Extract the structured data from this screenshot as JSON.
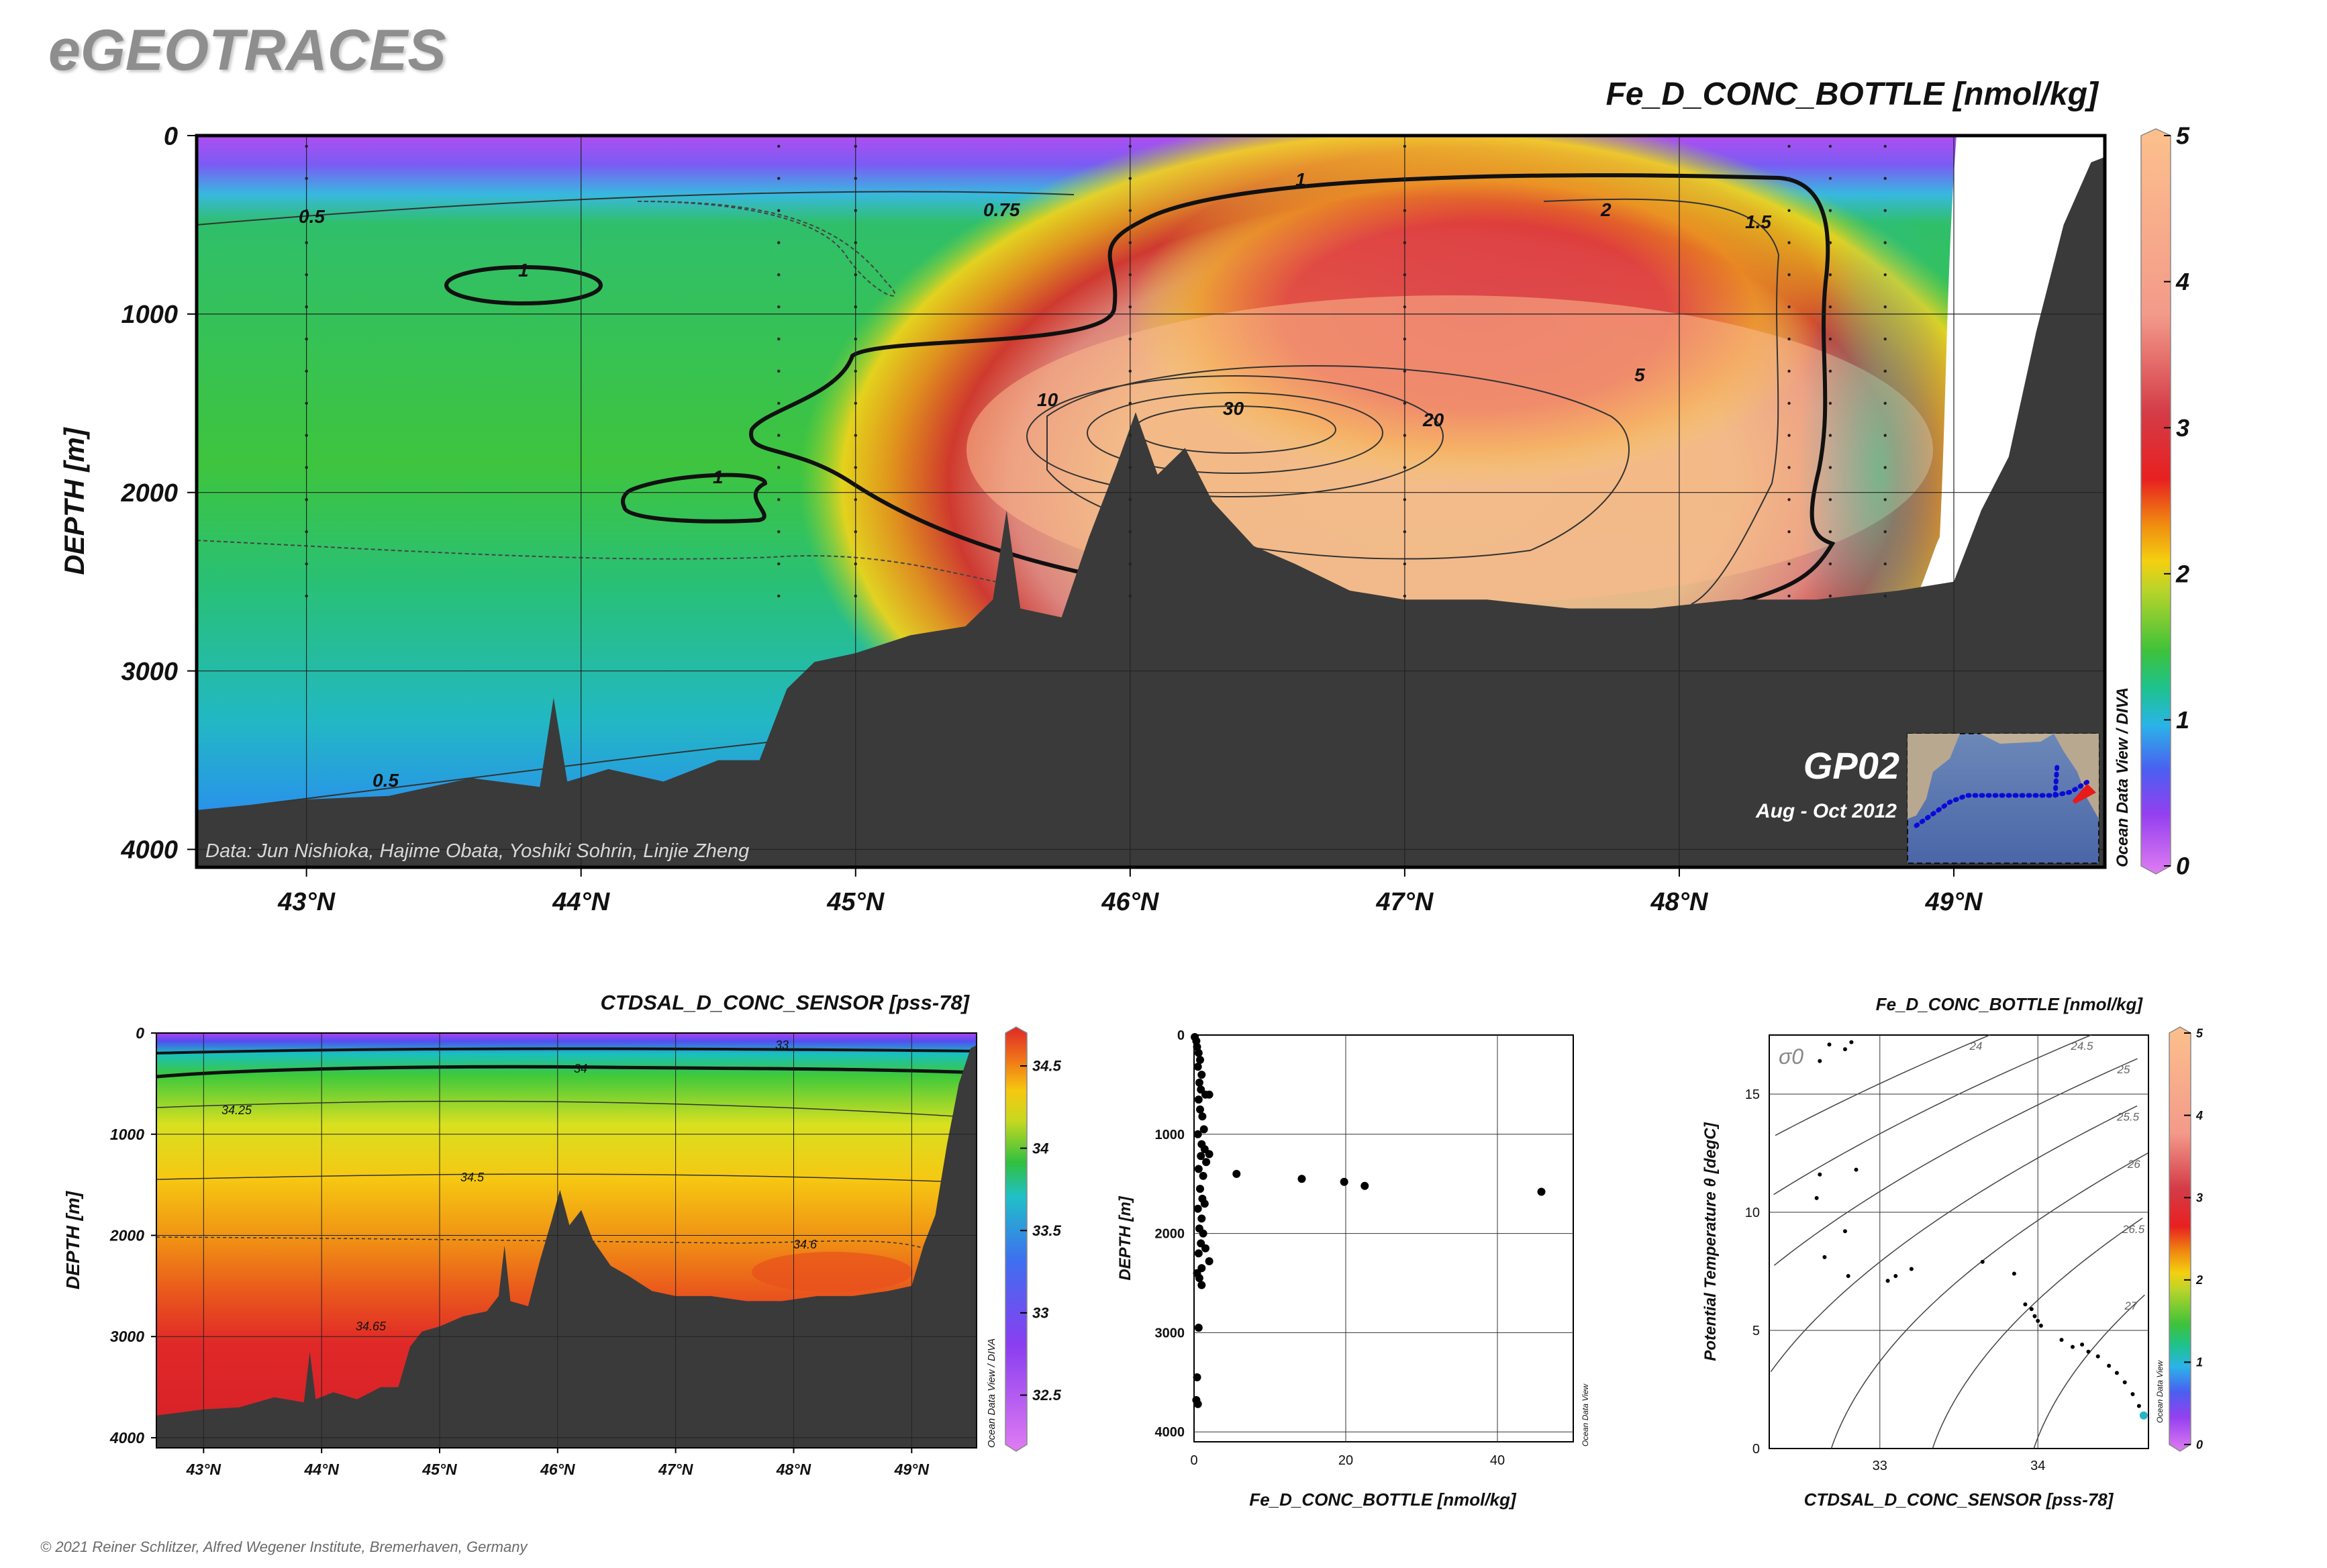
{
  "brand": "eGEOTRACES",
  "copyright": "© 2021 Reiner Schlitzer, Alfred Wegener Institute, Bremerhaven, Germany",
  "main": {
    "title": "Fe_D_CONC_BOTTLE [nmol/kg]",
    "ylabel": "DEPTH [m]",
    "data_credit": "Data: Jun Nishioka, Hajime Obata, Yoshiki Sohrin, Linjie Zheng",
    "cruise": "GP02",
    "cruise_dates": "Aug - Oct 2012",
    "odv_credit": "Ocean Data View / DIVA",
    "contour_labels": [
      "0.5",
      "0.75",
      "1",
      "1",
      "1",
      "1.5",
      "2",
      "5",
      "10",
      "20",
      "30",
      "0.5"
    ],
    "colorbar_ticks": [
      "0",
      "1",
      "2",
      "3",
      "4",
      "5"
    ]
  },
  "salinity": {
    "title": "CTDSAL_D_CONC_SENSOR [pss-78]",
    "ylabel": "DEPTH [m]",
    "odv_credit": "Ocean Data View / DIVA",
    "contour_labels": [
      "33",
      "34",
      "34.25",
      "34.5",
      "34.6",
      "34.65"
    ],
    "colorbar_ticks": [
      "32.5",
      "33",
      "33.5",
      "34",
      "34.5"
    ]
  },
  "profile": {
    "odv_credit": "Ocean Data View"
  },
  "ts": {
    "title": "Fe_D_CONC_BOTTLE [nmol/kg]",
    "sigma_label": "σ0",
    "odv_credit": "Ocean Data View",
    "isopycnal_labels": [
      "24",
      "24.5",
      "25",
      "25.5",
      "26",
      "26.5",
      "27"
    ],
    "colorbar_ticks": [
      "0",
      "1",
      "2",
      "3",
      "4",
      "5"
    ]
  },
  "chart_data": [
    {
      "type": "heatmap",
      "name": "main-section",
      "title": "Fe_D_CONC_BOTTLE [nmol/kg]",
      "xlabel": "",
      "ylabel": "DEPTH [m]",
      "xlim": [
        42.6,
        49.55
      ],
      "ylim": [
        4100,
        0
      ],
      "xticks": [
        43,
        44,
        45,
        46,
        47,
        48,
        49
      ],
      "xticklabels": [
        "43°N",
        "44°N",
        "45°N",
        "46°N",
        "47°N",
        "48°N",
        "49°N"
      ],
      "yticks": [
        0,
        1000,
        2000,
        3000,
        4000
      ],
      "yticklabels": [
        "0",
        "1000",
        "2000",
        "3000",
        "4000"
      ],
      "colorbar": {
        "min": 0,
        "max": 5,
        "ticks": [
          0,
          1,
          2,
          3,
          4,
          5
        ]
      },
      "contour_levels": [
        0.5,
        0.75,
        1,
        1.5,
        2,
        5,
        10,
        20,
        30
      ],
      "bathymetry": {
        "lat": [
          42.6,
          43.0,
          43.3,
          43.6,
          43.85,
          43.9,
          43.95,
          44.1,
          44.3,
          44.5,
          44.65,
          44.75,
          44.85,
          45.0,
          45.2,
          45.4,
          45.5,
          45.55,
          45.6,
          45.75,
          45.85,
          45.95,
          46.02,
          46.1,
          46.2,
          46.3,
          46.45,
          46.6,
          46.8,
          47.0,
          47.3,
          47.6,
          47.9,
          48.2,
          48.5,
          48.8,
          49.0,
          49.1,
          49.2,
          49.3,
          49.4,
          49.5,
          49.55
        ],
        "depth": [
          3780,
          3720,
          3700,
          3600,
          3650,
          3150,
          3620,
          3550,
          3620,
          3500,
          3500,
          3100,
          2950,
          2900,
          2800,
          2750,
          2600,
          2100,
          2650,
          2700,
          2250,
          1850,
          1550,
          1900,
          1750,
          2050,
          2300,
          2400,
          2550,
          2600,
          2600,
          2650,
          2650,
          2600,
          2600,
          2550,
          2500,
          2100,
          1800,
          1100,
          500,
          150,
          120
        ]
      }
    },
    {
      "type": "heatmap",
      "name": "salinity-section",
      "title": "CTDSAL_D_CONC_SENSOR [pss-78]",
      "xlabel": "",
      "ylabel": "DEPTH [m]",
      "xlim": [
        42.6,
        49.55
      ],
      "ylim": [
        4100,
        0
      ],
      "xticks": [
        43,
        44,
        45,
        46,
        47,
        48,
        49
      ],
      "xticklabels": [
        "43°N",
        "44°N",
        "45°N",
        "46°N",
        "47°N",
        "48°N",
        "49°N"
      ],
      "yticks": [
        0,
        1000,
        2000,
        3000,
        4000
      ],
      "yticklabels": [
        "0",
        "1000",
        "2000",
        "3000",
        "4000"
      ],
      "colorbar": {
        "min": 32.2,
        "max": 34.7,
        "ticks": [
          32.5,
          33,
          33.5,
          34,
          34.5
        ]
      },
      "contour_levels": [
        33,
        34,
        34.25,
        34.5,
        34.6,
        34.65
      ]
    },
    {
      "type": "scatter",
      "name": "fe-profile",
      "xlabel": "Fe_D_CONC_BOTTLE [nmol/kg]",
      "ylabel": "DEPTH [m]",
      "xlim": [
        0,
        50
      ],
      "ylim": [
        4100,
        0
      ],
      "xticks": [
        0,
        20,
        40
      ],
      "xticklabels": [
        "0",
        "20",
        "40"
      ],
      "yticks": [
        0,
        1000,
        2000,
        3000,
        4000
      ],
      "yticklabels": [
        "0",
        "1000",
        "2000",
        "3000",
        "4000"
      ],
      "points": [
        [
          0.1,
          20
        ],
        [
          0.3,
          60
        ],
        [
          0.4,
          120
        ],
        [
          0.6,
          180
        ],
        [
          0.8,
          250
        ],
        [
          0.5,
          320
        ],
        [
          1.0,
          400
        ],
        [
          0.7,
          480
        ],
        [
          0.9,
          550
        ],
        [
          1.5,
          600
        ],
        [
          2.0,
          600
        ],
        [
          0.6,
          650
        ],
        [
          0.8,
          750
        ],
        [
          1.1,
          820
        ],
        [
          1.3,
          950
        ],
        [
          0.5,
          1000
        ],
        [
          1.0,
          1100
        ],
        [
          1.4,
          1150
        ],
        [
          2.0,
          1200
        ],
        [
          0.9,
          1220
        ],
        [
          1.6,
          1280
        ],
        [
          0.6,
          1350
        ],
        [
          5.6,
          1400
        ],
        [
          1.2,
          1420
        ],
        [
          14.2,
          1450
        ],
        [
          19.8,
          1480
        ],
        [
          22.5,
          1520
        ],
        [
          45.8,
          1580
        ],
        [
          0.8,
          1550
        ],
        [
          1.1,
          1650
        ],
        [
          1.4,
          1700
        ],
        [
          0.5,
          1750
        ],
        [
          1.0,
          1850
        ],
        [
          0.7,
          1950
        ],
        [
          1.2,
          2000
        ],
        [
          0.9,
          2100
        ],
        [
          1.5,
          2150
        ],
        [
          0.6,
          2200
        ],
        [
          2.0,
          2280
        ],
        [
          1.0,
          2350
        ],
        [
          0.4,
          2400
        ],
        [
          0.7,
          2450
        ],
        [
          1.0,
          2520
        ],
        [
          0.6,
          2950
        ],
        [
          0.4,
          3450
        ],
        [
          0.3,
          3680
        ],
        [
          0.5,
          3720
        ]
      ]
    },
    {
      "type": "scatter",
      "name": "theta-salinity",
      "title": "Fe_D_CONC_BOTTLE [nmol/kg]",
      "xlabel": "CTDSAL_D_CONC_SENSOR [pss-78]",
      "ylabel": "Potential Temperature θ [degC]",
      "xlim": [
        32.3,
        34.7
      ],
      "ylim": [
        0,
        17.5
      ],
      "xticks": [
        33,
        34
      ],
      "yticks": [
        0,
        5,
        10,
        15
      ],
      "colorbar": {
        "min": 0,
        "max": 5,
        "ticks": [
          0,
          1,
          2,
          3,
          4,
          5
        ]
      },
      "isopycnals": [
        24,
        24.5,
        25,
        25.5,
        26,
        26.5,
        27
      ],
      "points": [
        [
          32.62,
          16.4
        ],
        [
          32.78,
          16.9
        ],
        [
          32.82,
          17.2
        ],
        [
          32.68,
          17.1
        ],
        [
          32.62,
          11.6
        ],
        [
          32.6,
          10.6
        ],
        [
          32.85,
          11.8
        ],
        [
          32.78,
          9.2
        ],
        [
          32.65,
          8.1
        ],
        [
          32.8,
          7.3
        ],
        [
          33.05,
          7.1
        ],
        [
          33.1,
          7.3
        ],
        [
          33.2,
          7.6
        ],
        [
          33.65,
          7.9
        ],
        [
          33.85,
          7.4
        ],
        [
          33.92,
          6.1
        ],
        [
          33.96,
          5.9
        ],
        [
          33.98,
          5.6
        ],
        [
          34.0,
          5.4
        ],
        [
          34.02,
          5.2
        ],
        [
          34.15,
          4.6
        ],
        [
          34.22,
          4.3
        ],
        [
          34.28,
          4.4
        ],
        [
          34.32,
          4.1
        ],
        [
          34.38,
          3.9
        ],
        [
          34.45,
          3.5
        ],
        [
          34.5,
          3.2
        ],
        [
          34.55,
          2.8
        ],
        [
          34.6,
          2.3
        ],
        [
          34.64,
          1.8
        ],
        [
          34.67,
          1.4
        ]
      ]
    }
  ]
}
